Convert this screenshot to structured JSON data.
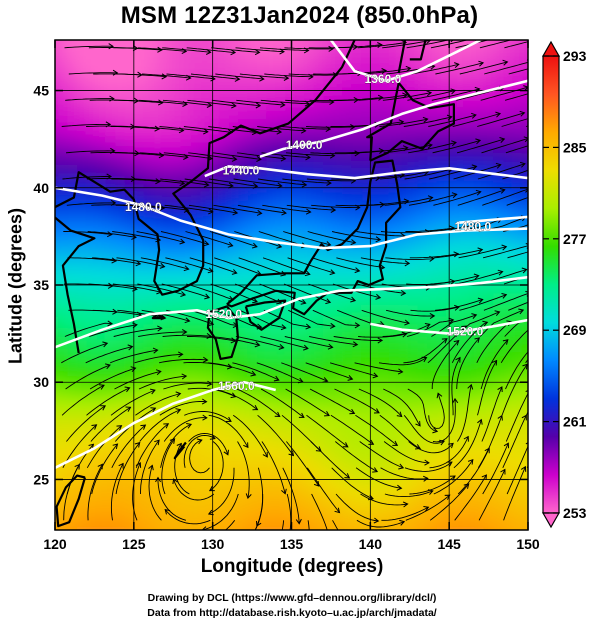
{
  "title": "MSM 12Z31Jan2024 (850.0hPa)",
  "xlabel": "Longitude (degrees)",
  "ylabel": "Latitude  (degrees)",
  "credit_line1": "Drawing by DCL (https://www.gfd–dennou.org/library/dcl/)",
  "credit_line2": "Data from http://database.rish.kyoto–u.ac.jp/arch/jmadata/",
  "chart_data": {
    "type": "heatmap",
    "title": "MSM 12Z31Jan2024 (850.0hPa)",
    "xlabel": "Longitude (degrees)",
    "ylabel": "Latitude  (degrees)",
    "xlim": [
      120,
      150
    ],
    "ylim": [
      22.4,
      47.6
    ],
    "x_ticks": [
      120,
      125,
      130,
      135,
      140,
      145,
      150
    ],
    "y_ticks": [
      25,
      30,
      35,
      40,
      45
    ],
    "grid": true,
    "field": "temperature (K), shaded",
    "colorbar": {
      "range": [
        253,
        293
      ],
      "ticks": [
        253,
        261,
        269,
        277,
        285,
        293
      ],
      "extend": "both",
      "colors": [
        "#ff66cc",
        "#cc00cc",
        "#5500aa",
        "#0033dd",
        "#0088ff",
        "#00dddd",
        "#00ee88",
        "#33dd00",
        "#aaee00",
        "#eedd00",
        "#ffaa00",
        "#ff5522",
        "#ee1111"
      ]
    },
    "temperature_profile": [
      {
        "lat": 22.4,
        "value": 286.5
      },
      {
        "lat": 25,
        "value": 284
      },
      {
        "lat": 28,
        "value": 281.5
      },
      {
        "lat": 31,
        "value": 276
      },
      {
        "lat": 34,
        "value": 272.5
      },
      {
        "lat": 37,
        "value": 268
      },
      {
        "lat": 40,
        "value": 263
      },
      {
        "lat": 43,
        "value": 258
      },
      {
        "lat": 46,
        "value": 255
      },
      {
        "lat": 47.6,
        "value": 254
      }
    ],
    "height_contours": [
      {
        "label": "1360.0",
        "points": [
          [
            137.5,
            47.6
          ],
          [
            139,
            46.0
          ],
          [
            141,
            45.5
          ],
          [
            143,
            46.0
          ],
          [
            145.5,
            47.0
          ],
          [
            147,
            47.6
          ]
        ],
        "label_at": [
          140.8,
          45.6
        ]
      },
      {
        "label": "1400.0",
        "points": [
          [
            133,
            41.6
          ],
          [
            134.5,
            42.0
          ],
          [
            137,
            42.4
          ],
          [
            139.5,
            43.0
          ],
          [
            142,
            43.8
          ],
          [
            144,
            44.3
          ],
          [
            147,
            44.9
          ],
          [
            150,
            45.5
          ]
        ],
        "label_at": [
          135.8,
          42.2
        ]
      },
      {
        "label": "1440.0",
        "points": [
          [
            129.5,
            40.6
          ],
          [
            131,
            41.1
          ],
          [
            133,
            41.0
          ],
          [
            136,
            40.7
          ],
          [
            139,
            40.5
          ],
          [
            142,
            40.8
          ],
          [
            145,
            41.0
          ],
          [
            148,
            40.7
          ],
          [
            150,
            40.5
          ]
        ],
        "label_at": [
          131.8,
          40.9
        ]
      },
      {
        "label": "1480.0",
        "points": [
          [
            120,
            40.0
          ],
          [
            123,
            39.6
          ],
          [
            125.5,
            39.1
          ],
          [
            128,
            38.3
          ],
          [
            131,
            37.6
          ],
          [
            134,
            37.2
          ],
          [
            137,
            36.9
          ],
          [
            140,
            37.0
          ],
          [
            143,
            37.6
          ],
          [
            146,
            37.8
          ],
          [
            150,
            37.9
          ]
        ],
        "label_at": [
          125.6,
          39.0
        ]
      },
      {
        "label": "1520.0",
        "points": [
          [
            120,
            31.8
          ],
          [
            123,
            32.7
          ],
          [
            126,
            33.5
          ],
          [
            129,
            33.7
          ],
          [
            131,
            33.3
          ],
          [
            133,
            33.5
          ],
          [
            135.5,
            34.3
          ],
          [
            138,
            34.7
          ],
          [
            141,
            34.8
          ],
          [
            144,
            34.9
          ],
          [
            147,
            35.1
          ],
          [
            150,
            35.4
          ]
        ],
        "label_at": [
          130.7,
          33.5
        ]
      },
      {
        "label": "1520.0",
        "points": [
          [
            140,
            33.0
          ],
          [
            142,
            32.7
          ],
          [
            145,
            32.5
          ],
          [
            148,
            32.9
          ],
          [
            150,
            33.2
          ]
        ],
        "label_at": [
          146,
          32.6
        ]
      },
      {
        "label": "1560.0",
        "points": [
          [
            120,
            25.6
          ],
          [
            122.5,
            26.6
          ],
          [
            125,
            27.9
          ],
          [
            127.5,
            28.9
          ],
          [
            130,
            29.6
          ],
          [
            132,
            30.0
          ],
          [
            134,
            29.6
          ]
        ],
        "label_at": [
          131.5,
          29.8
        ]
      },
      {
        "label": "1480.0",
        "points": [
          [
            145.5,
            38.2
          ],
          [
            147,
            38.3
          ],
          [
            150,
            38.5
          ]
        ],
        "label_at": [
          146.5,
          38.0
        ]
      }
    ],
    "circulation_centers": [
      {
        "type": "anticyclone",
        "lon": 129.5,
        "lat": 26.5
      },
      {
        "type": "cyclone",
        "lon": 144.5,
        "lat": 27.5
      }
    ]
  }
}
